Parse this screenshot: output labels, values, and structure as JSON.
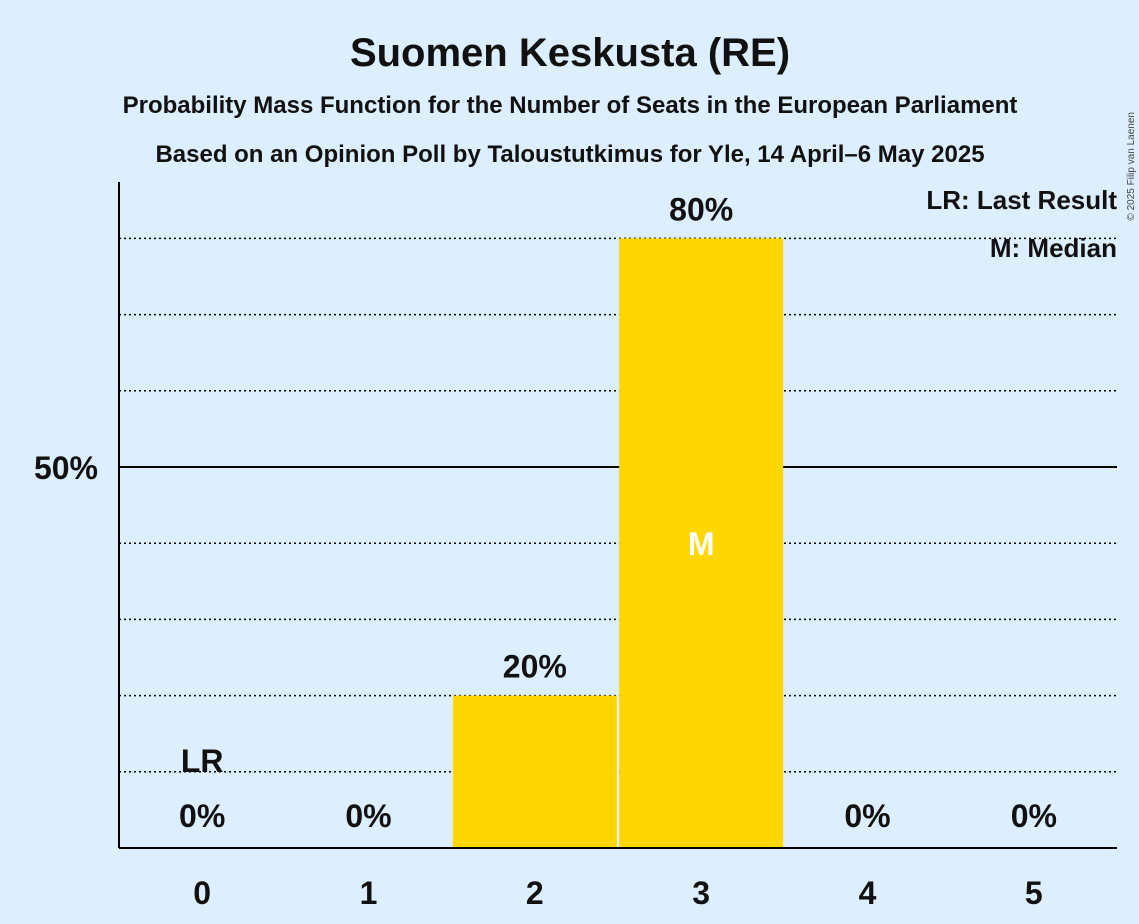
{
  "title": "Suomen Keskusta (RE)",
  "subtitle1": "Probability Mass Function for the Number of Seats in the European Parliament",
  "subtitle2": "Based on an Opinion Poll by Taloustutkimus for Yle, 14 April–6 May 2025",
  "copyright": "© 2025 Filip van Laenen",
  "legend": {
    "lr": "LR: Last Result",
    "m": "M: Median"
  },
  "colors": {
    "background": "#ddeeff",
    "bar": "#ffd700",
    "median_mark": "#ffffff",
    "text": "#111111"
  },
  "chart_data": {
    "type": "bar",
    "categories": [
      "0",
      "1",
      "2",
      "3",
      "4",
      "5"
    ],
    "values": [
      0,
      0,
      20,
      80,
      0,
      0
    ],
    "value_labels": [
      "0%",
      "0%",
      "20%",
      "80%",
      "0%",
      "0%"
    ],
    "ylim": [
      0,
      87
    ],
    "yticks": [
      {
        "value": 50,
        "label": "50%"
      }
    ],
    "minor_gridlines": [
      10,
      20,
      30,
      40,
      60,
      70,
      80
    ],
    "last_result": {
      "category": "0",
      "label": "LR"
    },
    "median": {
      "category": "3",
      "label": "M"
    }
  }
}
